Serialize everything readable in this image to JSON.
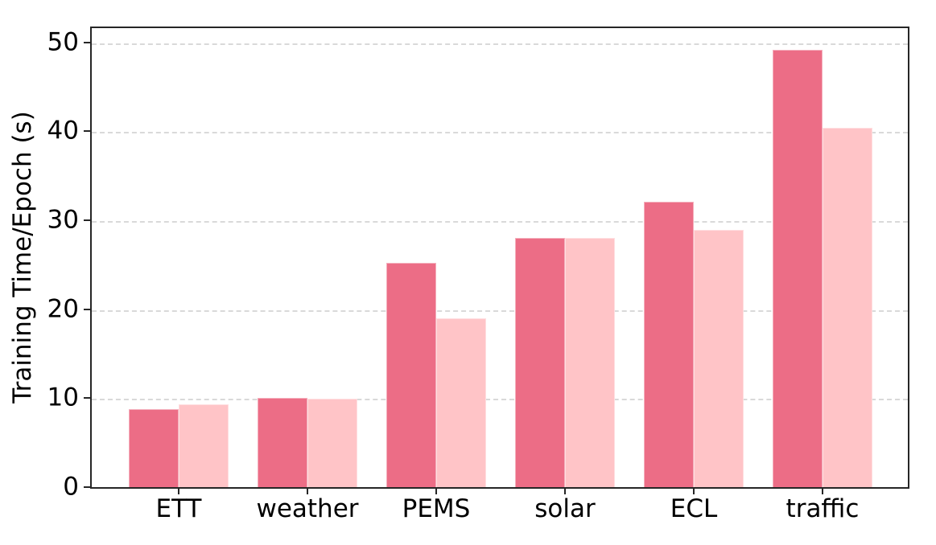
{
  "chart_data": {
    "type": "bar",
    "title": "",
    "categories": [
      "ETT",
      "weather",
      "PEMS",
      "solar",
      "ECL",
      "traffic"
    ],
    "series": [
      {
        "name": "dark-pink-series",
        "color": "#ec6d86",
        "values": [
          8.8,
          10.0,
          25.2,
          28.0,
          32.1,
          49.2
        ]
      },
      {
        "name": "light-pink-series",
        "color": "#ffc4c7",
        "values": [
          9.3,
          9.9,
          19.0,
          28.0,
          28.9,
          40.4
        ]
      }
    ],
    "xlabel": "",
    "ylabel": "Training Time/Epoch (s)",
    "yticks": [
      0,
      10,
      20,
      30,
      40,
      50
    ],
    "ylim": [
      0,
      51.6
    ],
    "grid": "horizontal dashed",
    "legend_position": "none",
    "axis_color": "#262626",
    "grid_color": "#d9d9d9",
    "tick_label_color": "#000000",
    "background_color": "#ffffff"
  }
}
